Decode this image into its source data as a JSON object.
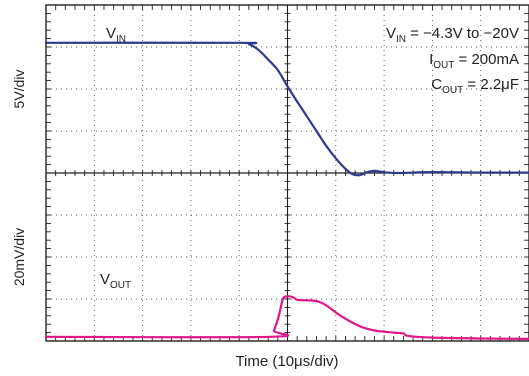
{
  "chart_data": {
    "type": "line",
    "title": "",
    "xlabel": "Time (10μs/div)",
    "x_divisions": 10,
    "grid": true,
    "panels": [
      {
        "ylabel": "5V/div",
        "y_divisions": 4,
        "series": [
          {
            "name": "V_IN",
            "label_main": "V",
            "label_sub": "IN",
            "color": "#2b3990",
            "points": [
              [
                0,
                3.1
              ],
              [
                4.0,
                3.1
              ],
              [
                4.2,
                3.07
              ],
              [
                4.4,
                2.93
              ],
              [
                4.6,
                2.7
              ],
              [
                4.8,
                2.45
              ],
              [
                5.0,
                2.06
              ],
              [
                5.2,
                1.7
              ],
              [
                5.4,
                1.35
              ],
              [
                5.6,
                1.0
              ],
              [
                5.8,
                0.65
              ],
              [
                6.0,
                0.35
              ],
              [
                6.2,
                0.1
              ],
              [
                6.35,
                -0.03
              ],
              [
                6.5,
                -0.05
              ],
              [
                6.65,
                0.02
              ],
              [
                6.8,
                0.05
              ],
              [
                7.0,
                0.02
              ],
              [
                7.3,
                0.0
              ],
              [
                8.0,
                0.02
              ],
              [
                9.0,
                0.01
              ],
              [
                10.0,
                0.01
              ]
            ]
          }
        ],
        "annotation": [
          {
            "main": "V",
            "sub": "IN",
            "rest": " = −4.3V to −20V"
          },
          {
            "main": "I",
            "sub": "OUT",
            "rest": " = 200mA"
          },
          {
            "main": "C",
            "sub": "OUT",
            "rest": " = 2.2μF"
          }
        ]
      },
      {
        "ylabel": "20mV/div",
        "y_divisions": 4,
        "series": [
          {
            "name": "V_OUT",
            "label_main": "V",
            "label_sub": "OUT",
            "color": "#e0168c",
            "points": [
              [
                0,
                0.1
              ],
              [
                4.65,
                0.1
              ],
              [
                4.72,
                0.25
              ],
              [
                4.82,
                0.6
              ],
              [
                4.9,
                0.98
              ],
              [
                4.97,
                1.06
              ],
              [
                5.1,
                1.05
              ],
              [
                5.2,
                0.98
              ],
              [
                5.35,
                0.97
              ],
              [
                5.6,
                0.95
              ],
              [
                5.8,
                0.85
              ],
              [
                6.1,
                0.6
              ],
              [
                6.5,
                0.35
              ],
              [
                6.8,
                0.25
              ],
              [
                7.2,
                0.2
              ],
              [
                7.4,
                0.18
              ],
              [
                7.5,
                0.12
              ],
              [
                8.0,
                0.08
              ],
              [
                9.0,
                0.06
              ],
              [
                10.0,
                0.05
              ]
            ]
          }
        ]
      }
    ]
  }
}
